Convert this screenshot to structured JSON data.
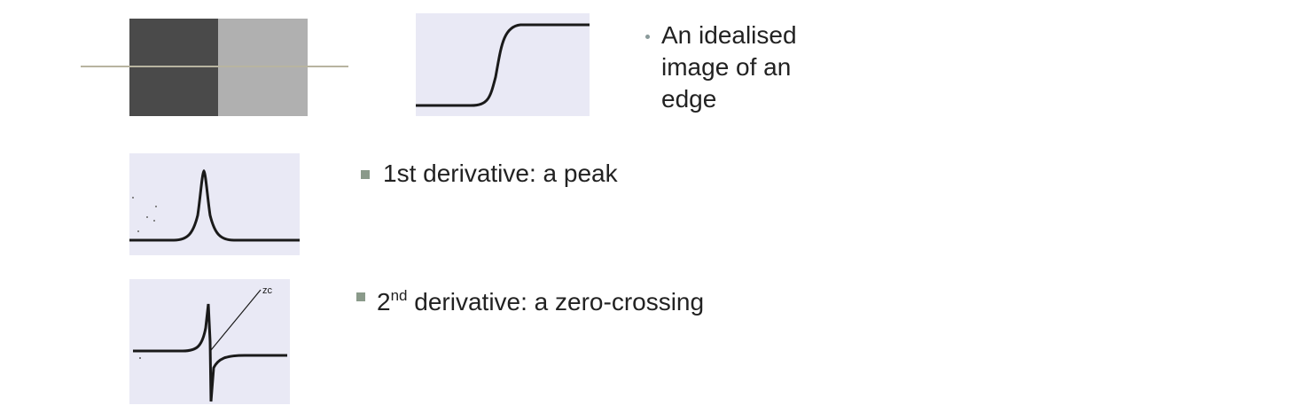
{
  "slide": {
    "bullets": {
      "idealised": [
        "An idealised",
        "image of an",
        "edge"
      ],
      "first_derivative": "1st derivative: a peak",
      "second_derivative": {
        "prefix": "2",
        "superscript": "nd",
        "rest": " derivative: a zero-crossing"
      }
    },
    "annotation_zc": "zc"
  },
  "colors": {
    "edge_dark": "#4a4a4a",
    "edge_light": "#b0b0b0",
    "scan_line": "#b8b4a0",
    "panel_bg": "#e9e9f5",
    "bullet_dot": "#8a9a9a",
    "bullet_square": "#8a9a8a"
  }
}
